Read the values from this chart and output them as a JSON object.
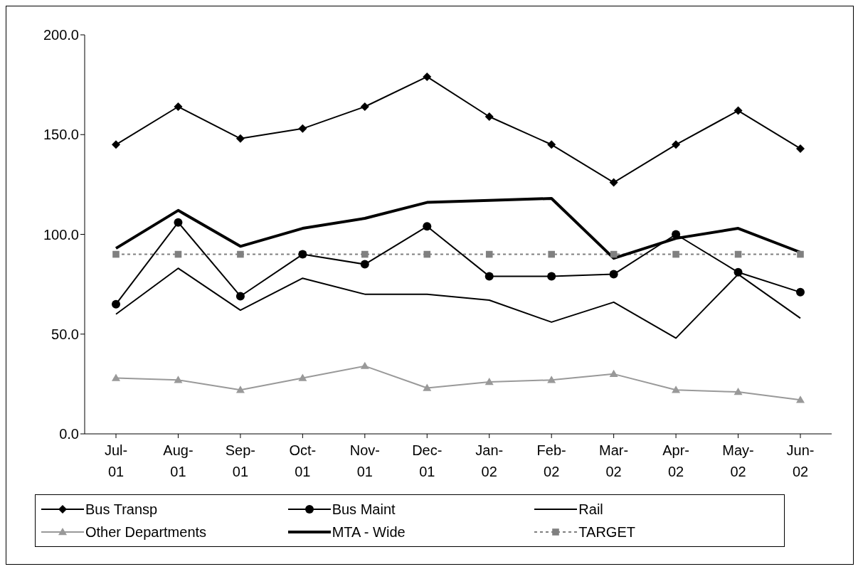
{
  "chart_data": {
    "type": "line",
    "categories": [
      "Jul-01",
      "Aug-01",
      "Sep-01",
      "Oct-01",
      "Nov-01",
      "Dec-01",
      "Jan-02",
      "Feb-02",
      "Mar-02",
      "Apr-02",
      "May-02",
      "Jun-02"
    ],
    "series": [
      {
        "name": "Bus Transp",
        "color": "#000000",
        "marker": "diamond",
        "values": [
          145,
          164,
          148,
          153,
          164,
          179,
          159,
          145,
          126,
          145,
          162,
          143
        ]
      },
      {
        "name": "Bus Maint",
        "color": "#000000",
        "marker": "circle",
        "values": [
          65,
          106,
          69,
          90,
          85,
          104,
          79,
          79,
          80,
          100,
          81,
          71
        ]
      },
      {
        "name": "Rail",
        "color": "#000000",
        "marker": "none",
        "values": [
          60,
          83,
          62,
          78,
          70,
          70,
          67,
          56,
          66,
          48,
          80,
          58
        ]
      },
      {
        "name": "Other Departments",
        "color": "#999999",
        "marker": "triangle",
        "values": [
          28,
          27,
          22,
          28,
          34,
          23,
          26,
          27,
          30,
          22,
          21,
          17
        ]
      },
      {
        "name": "MTA - Wide",
        "color": "#000000",
        "marker": "none",
        "values": [
          93,
          112,
          94,
          103,
          108,
          116,
          117,
          118,
          88,
          98,
          103,
          91
        ]
      },
      {
        "name": "TARGET",
        "color": "#808080",
        "marker": "square",
        "line_style": "dashed",
        "values": [
          90,
          90,
          90,
          90,
          90,
          90,
          90,
          90,
          90,
          90,
          90,
          90
        ]
      }
    ],
    "ylim": [
      0,
      200
    ],
    "yticks": [
      {
        "value": 0,
        "label": "0.0"
      },
      {
        "value": 50,
        "label": "50.0"
      },
      {
        "value": 100,
        "label": "100.0"
      },
      {
        "value": 150,
        "label": "150.0"
      },
      {
        "value": 200,
        "label": "200.0"
      }
    ],
    "legend": "bottom"
  }
}
